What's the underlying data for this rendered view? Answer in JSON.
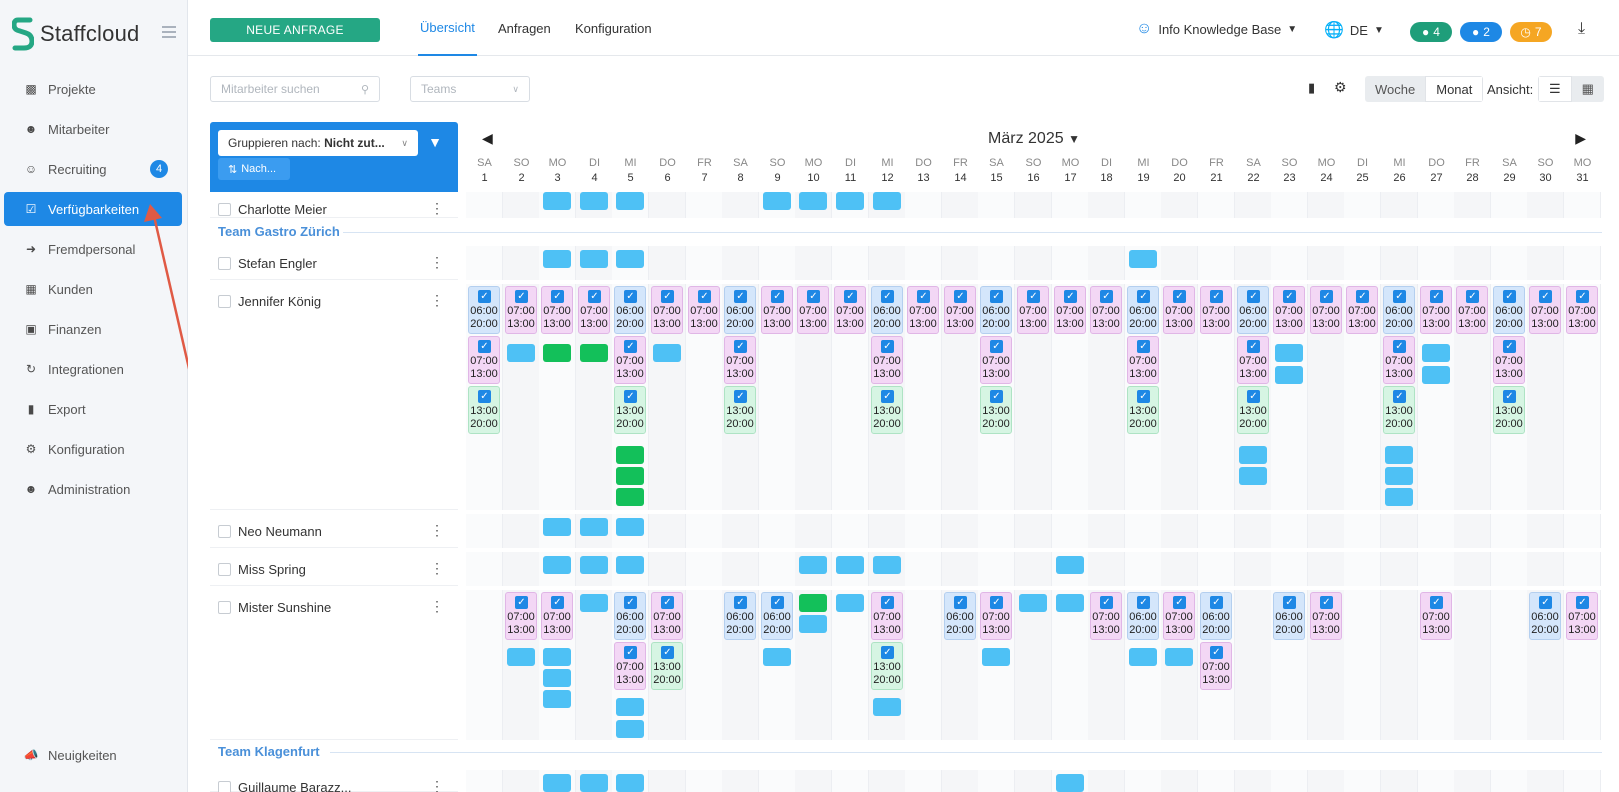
{
  "brand": {
    "name": "Staffcloud",
    "color": "#25a784"
  },
  "sidebar": {
    "items": [
      {
        "label": "Projekte",
        "icon": "sitemap-icon"
      },
      {
        "label": "Mitarbeiter",
        "icon": "users-icon"
      },
      {
        "label": "Recruiting",
        "icon": "user-plus-icon",
        "badge": "4"
      },
      {
        "label": "Verfügbarkeiten",
        "icon": "calendar-check-icon",
        "active": true
      },
      {
        "label": "Fremdpersonal",
        "icon": "sign-in-icon"
      },
      {
        "label": "Kunden",
        "icon": "building-icon"
      },
      {
        "label": "Finanzen",
        "icon": "money-icon"
      },
      {
        "label": "Integrationen",
        "icon": "sync-icon"
      },
      {
        "label": "Export",
        "icon": "file-icon"
      },
      {
        "label": "Konfiguration",
        "icon": "gear-icon"
      },
      {
        "label": "Administration",
        "icon": "user-cog-icon"
      }
    ],
    "footer": "Neuigkeiten"
  },
  "topbar": {
    "new_request": "NEUE ANFRAGE",
    "tabs": [
      "Übersicht",
      "Anfragen",
      "Konfiguration"
    ],
    "user": "Info Knowledge Base",
    "language": "DE",
    "pills": [
      {
        "value": "4",
        "color": "#1f9e7a",
        "icon": "chat-icon"
      },
      {
        "value": "2",
        "color": "#1e88e5",
        "icon": "bell-icon"
      },
      {
        "value": "7",
        "color": "#f5a623",
        "icon": "clock-icon"
      }
    ]
  },
  "filters": {
    "search_placeholder": "Mitarbeiter suchen",
    "teams_placeholder": "Teams",
    "woche": "Woche",
    "monat": "Monat",
    "ansicht": "Ansicht:"
  },
  "group": {
    "label_prefix": "Gruppieren nach:",
    "label_value": "Nicht zut...",
    "sort": "Nach..."
  },
  "calendar": {
    "month": "März 2025",
    "days": [
      {
        "wd": "SA",
        "d": "1"
      },
      {
        "wd": "SO",
        "d": "2"
      },
      {
        "wd": "MO",
        "d": "3"
      },
      {
        "wd": "DI",
        "d": "4"
      },
      {
        "wd": "MI",
        "d": "5"
      },
      {
        "wd": "DO",
        "d": "6"
      },
      {
        "wd": "FR",
        "d": "7"
      },
      {
        "wd": "SA",
        "d": "8"
      },
      {
        "wd": "SO",
        "d": "9"
      },
      {
        "wd": "MO",
        "d": "10"
      },
      {
        "wd": "DI",
        "d": "11"
      },
      {
        "wd": "MI",
        "d": "12"
      },
      {
        "wd": "DO",
        "d": "13"
      },
      {
        "wd": "FR",
        "d": "14"
      },
      {
        "wd": "SA",
        "d": "15"
      },
      {
        "wd": "SO",
        "d": "16"
      },
      {
        "wd": "MO",
        "d": "17"
      },
      {
        "wd": "DI",
        "d": "18"
      },
      {
        "wd": "MI",
        "d": "19"
      },
      {
        "wd": "DO",
        "d": "20"
      },
      {
        "wd": "FR",
        "d": "21"
      },
      {
        "wd": "SA",
        "d": "22"
      },
      {
        "wd": "SO",
        "d": "23"
      },
      {
        "wd": "MO",
        "d": "24"
      },
      {
        "wd": "DI",
        "d": "25"
      },
      {
        "wd": "MI",
        "d": "26"
      },
      {
        "wd": "DO",
        "d": "27"
      },
      {
        "wd": "FR",
        "d": "28"
      },
      {
        "wd": "SA",
        "d": "29"
      },
      {
        "wd": "SO",
        "d": "30"
      },
      {
        "wd": "MO",
        "d": "31"
      }
    ]
  },
  "teams": [
    "Team Gastro Zürich",
    "Team Klagenfurt"
  ],
  "employees": [
    "Charlotte Meier",
    "Stefan Engler",
    "Jennifer König",
    "Neo Neumann",
    "Miss Spring",
    "Mister Sunshine",
    "Guillaume Barazz..."
  ],
  "shift_times": {
    "a": [
      "06:00",
      "20:00"
    ],
    "b": [
      "07:00",
      "13:00"
    ],
    "c": [
      "13:00",
      "20:00"
    ]
  }
}
